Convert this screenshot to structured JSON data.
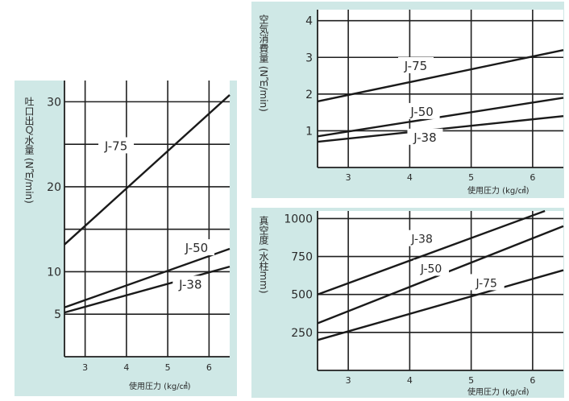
{
  "colors": {
    "panel_bg": "#cfe8e6",
    "plot_bg": "#ffffff",
    "line": "#1a1a1a",
    "grid": "#1f1f1f",
    "text": "#2a2a2a"
  },
  "chart_data": [
    {
      "id": "left",
      "type": "line",
      "ylabel": "吐口出Ｑ水量 (N㎥/min)",
      "xlabel": "使用圧力 (kg/㎠)",
      "xlim": [
        2.5,
        6.5
      ],
      "ylim": [
        0,
        32.5
      ],
      "xticks": [
        3,
        4,
        5,
        6
      ],
      "xtick_labels": [
        "3",
        "4",
        "5",
        "6"
      ],
      "yticks": [
        5,
        10,
        20,
        30
      ],
      "ytick_labels": [
        "5",
        "10",
        "20",
        "30"
      ],
      "hgrid": [
        5,
        10,
        15,
        20,
        25,
        30
      ],
      "vgrid": [
        3,
        4,
        5,
        6
      ],
      "grid": true,
      "series": [
        {
          "name": "J-75",
          "x": [
            2.5,
            6.5
          ],
          "y": [
            13.2,
            30.8
          ],
          "label_at": [
            3.75,
            24.5
          ]
        },
        {
          "name": "J-50",
          "x": [
            2.5,
            6.5
          ],
          "y": [
            5.8,
            12.7
          ],
          "label_at": [
            5.7,
            12.5
          ]
        },
        {
          "name": "J-38",
          "x": [
            2.5,
            6.5
          ],
          "y": [
            5.2,
            10.6
          ],
          "label_at": [
            5.55,
            8.2
          ]
        }
      ]
    },
    {
      "id": "top-right",
      "type": "line",
      "ylabel": "空気消費量 (N㎥/min)",
      "xlabel": "使用圧力 (kg/㎠)",
      "xlim": [
        2.5,
        6.5
      ],
      "ylim": [
        0,
        4.3
      ],
      "xticks": [
        3,
        4,
        5,
        6
      ],
      "xtick_labels": [
        "3",
        "4",
        "5",
        "6"
      ],
      "yticks": [
        1,
        2,
        3,
        4
      ],
      "ytick_labels": [
        "1",
        "2",
        "3",
        "4"
      ],
      "hgrid": [
        1,
        2,
        3,
        4
      ],
      "vgrid": [
        3,
        4,
        5,
        6
      ],
      "grid": true,
      "series": [
        {
          "name": "J-75",
          "x": [
            2.5,
            6.5
          ],
          "y": [
            1.8,
            3.2
          ],
          "label_at": [
            4.1,
            2.7
          ]
        },
        {
          "name": "J-50",
          "x": [
            2.5,
            6.5
          ],
          "y": [
            0.85,
            1.9
          ],
          "label_at": [
            4.2,
            1.45
          ]
        },
        {
          "name": "J-38",
          "x": [
            2.5,
            6.5
          ],
          "y": [
            0.7,
            1.4
          ],
          "label_at": [
            4.25,
            0.75
          ]
        }
      ]
    },
    {
      "id": "bottom-right",
      "type": "line",
      "ylabel": "真空度 (水柱mm)",
      "xlabel": "使用圧力 (kg/㎠)",
      "xlim": [
        2.5,
        6.5
      ],
      "ylim": [
        0,
        1050
      ],
      "xticks": [
        3,
        4,
        5,
        6
      ],
      "xtick_labels": [
        "3",
        "4",
        "5",
        "6"
      ],
      "yticks": [
        250,
        500,
        750,
        1000
      ],
      "ytick_labels": [
        "250",
        "500",
        "750",
        "1000"
      ],
      "hgrid": [
        250,
        500,
        750,
        1000
      ],
      "vgrid": [
        3,
        4,
        5,
        6
      ],
      "grid": true,
      "series": [
        {
          "name": "J-38",
          "x": [
            2.5,
            6.2
          ],
          "y": [
            500,
            1050
          ],
          "label_at": [
            4.2,
            850
          ]
        },
        {
          "name": "J-50",
          "x": [
            2.5,
            6.5
          ],
          "y": [
            310,
            950
          ],
          "label_at": [
            4.35,
            655
          ]
        },
        {
          "name": "J-75",
          "x": [
            2.5,
            6.5
          ],
          "y": [
            200,
            660
          ],
          "label_at": [
            5.25,
            560
          ]
        }
      ]
    }
  ]
}
